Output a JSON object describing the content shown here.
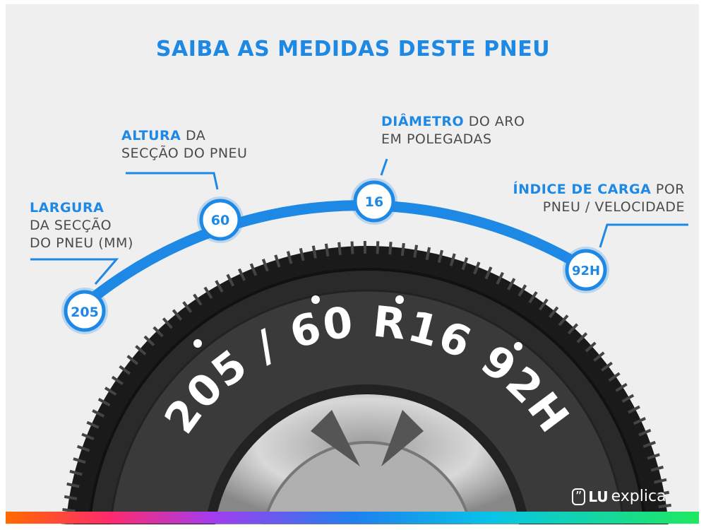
{
  "title": "SAIBA AS MEDIDAS DESTE PNEU",
  "labels": {
    "largura": {
      "highlight": "LARGURA",
      "line2": "DA SECÇÃO",
      "line3": "DO PNEU (MM)",
      "value": "205"
    },
    "altura": {
      "highlight": "ALTURA",
      "rest": "DA",
      "line2": "SECÇÃO DO PNEU",
      "value": "60"
    },
    "diametro": {
      "highlight": "DIÂMETRO",
      "rest": "DO ARO",
      "line2": "EM POLEGADAS",
      "value": "16"
    },
    "indice": {
      "highlight": "ÍNDICE DE CARGA",
      "rest": "POR",
      "line2": "PNEU / VELOCIDADE",
      "value": "92H"
    }
  },
  "tire_marking": "205 / 60 R16 92H",
  "logo": {
    "bold": "LU",
    "text": "explica"
  },
  "colors": {
    "accent": "#1e88e5",
    "text": "#4a4a4a",
    "tire": "#1d1d1d"
  }
}
